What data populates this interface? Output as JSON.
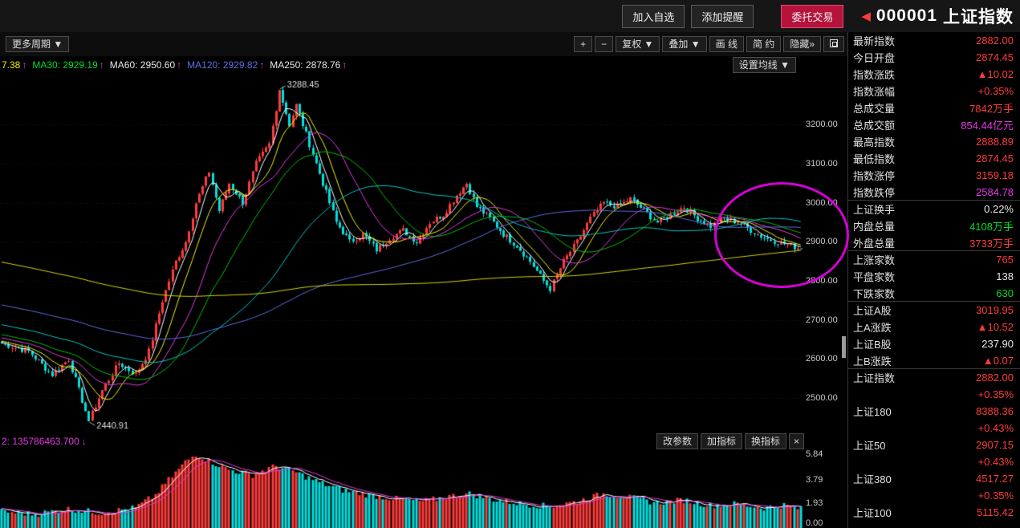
{
  "colors": {
    "red": "#ff3b3b",
    "green": "#00dc28",
    "white": "#e8e8e8",
    "magenta": "#e23ae2"
  },
  "topbar": {
    "add_watchlist": "加入自选",
    "add_alert": "添加提醒",
    "trade": "委托交易",
    "back_icon": "◀",
    "stock_code": "000001",
    "stock_name": "上证指数"
  },
  "toolbar": {
    "more_periods": "更多周期 ▼",
    "zoom_in": "+",
    "zoom_out": "−",
    "adjust": "复权 ▼",
    "overlay": "叠加 ▼",
    "draw_line": "画 线",
    "simple": "简 约",
    "hide": "隐藏»",
    "set_ma": "设置均线 ▼"
  },
  "ma_labels": {
    "partial": "7.38",
    "arrow": "↑",
    "items": [
      {
        "text": "MA30: 2929.19",
        "color": "#00dc28"
      },
      {
        "text": "MA60: 2950.60",
        "color": "#e8e8e8"
      },
      {
        "text": "MA120: 2929.82",
        "color": "#5b6ee1"
      },
      {
        "text": "MA250: 2878.76",
        "color": "#e8e8e8"
      }
    ]
  },
  "vol_pane": {
    "label": "2: 135786463.700",
    "arrow": "↓",
    "buttons": [
      "改参数",
      "加指标",
      "换指标"
    ],
    "close": "×"
  },
  "chart_data": {
    "type": "candlestick",
    "symbol": "000001 上证指数",
    "y_axis_labels": [
      "3200.00",
      "3100.00",
      "3000.00",
      "2900.00",
      "2800.00",
      "2700.00",
      "2600.00",
      "2500.00"
    ],
    "y_axis_values": [
      3200,
      3100,
      3000,
      2900,
      2800,
      2700,
      2600,
      2500
    ],
    "y_range": [
      2410,
      3330
    ],
    "num_candles": 240,
    "up_color": "#ff3b3b",
    "down_color": "#00e0e0",
    "close_anchors": [
      [
        0,
        2640
      ],
      [
        8,
        2620
      ],
      [
        15,
        2560
      ],
      [
        20,
        2600
      ],
      [
        26,
        2440.91
      ],
      [
        30,
        2520
      ],
      [
        35,
        2590
      ],
      [
        40,
        2560
      ],
      [
        44,
        2620
      ],
      [
        48,
        2750
      ],
      [
        52,
        2850
      ],
      [
        55,
        2900
      ],
      [
        58,
        3000
      ],
      [
        62,
        3080
      ],
      [
        65,
        2980
      ],
      [
        68,
        3050
      ],
      [
        72,
        3000
      ],
      [
        76,
        3100
      ],
      [
        80,
        3150
      ],
      [
        83,
        3288.45
      ],
      [
        86,
        3200
      ],
      [
        88,
        3250
      ],
      [
        92,
        3150
      ],
      [
        96,
        3050
      ],
      [
        100,
        2950
      ],
      [
        104,
        2900
      ],
      [
        108,
        2920
      ],
      [
        112,
        2880
      ],
      [
        116,
        2910
      ],
      [
        120,
        2930
      ],
      [
        124,
        2900
      ],
      [
        128,
        2950
      ],
      [
        132,
        2970
      ],
      [
        136,
        3020
      ],
      [
        139,
        3050
      ],
      [
        142,
        2990
      ],
      [
        146,
        2960
      ],
      [
        150,
        2920
      ],
      [
        154,
        2890
      ],
      [
        158,
        2850
      ],
      [
        162,
        2800
      ],
      [
        164,
        2780
      ],
      [
        168,
        2850
      ],
      [
        172,
        2900
      ],
      [
        176,
        2960
      ],
      [
        180,
        3000
      ],
      [
        184,
        2990
      ],
      [
        188,
        3010
      ],
      [
        192,
        2980
      ],
      [
        196,
        2950
      ],
      [
        200,
        2970
      ],
      [
        204,
        2990
      ],
      [
        208,
        2960
      ],
      [
        212,
        2940
      ],
      [
        216,
        2960
      ],
      [
        220,
        2950
      ],
      [
        224,
        2930
      ],
      [
        228,
        2910
      ],
      [
        232,
        2900
      ],
      [
        236,
        2890
      ],
      [
        239,
        2882
      ]
    ],
    "exact_indices": [
      26,
      83,
      239
    ],
    "ma_lines": [
      {
        "window": 5,
        "color": "#ffffff"
      },
      {
        "window": 10,
        "color": "#f0f000"
      },
      {
        "window": 20,
        "color": "#e23ae2"
      },
      {
        "window": 30,
        "color": "#00c000"
      },
      {
        "window": 60,
        "color": "#00c8c8"
      },
      {
        "window": 120,
        "color": "#5b6ee1"
      },
      {
        "window": 250,
        "color": "#d8d800"
      }
    ],
    "annotations": {
      "peak": {
        "index": 83,
        "text": "3288.45"
      },
      "low": {
        "index": 26,
        "text": "2440.91"
      },
      "ellipse": {
        "left": 890,
        "top": 227,
        "width": 168,
        "height": 132,
        "color": "#d400d4"
      }
    },
    "volume": {
      "axis_labels": [
        "5.84",
        "3.79",
        "1.93",
        "0.00"
      ],
      "axis_values": [
        5.84,
        3.79,
        1.93,
        0.0
      ],
      "range": [
        0,
        6.2
      ],
      "anchors": [
        [
          0,
          1.3
        ],
        [
          10,
          1.1
        ],
        [
          20,
          1.5
        ],
        [
          30,
          1.2
        ],
        [
          40,
          1.6
        ],
        [
          46,
          2.6
        ],
        [
          50,
          3.8
        ],
        [
          55,
          5.2
        ],
        [
          58,
          5.84
        ],
        [
          62,
          5.3
        ],
        [
          68,
          4.6
        ],
        [
          75,
          4.2
        ],
        [
          82,
          4.9
        ],
        [
          88,
          4.4
        ],
        [
          95,
          3.6
        ],
        [
          102,
          3.0
        ],
        [
          110,
          2.6
        ],
        [
          118,
          2.3
        ],
        [
          126,
          2.1
        ],
        [
          134,
          2.5
        ],
        [
          140,
          2.7
        ],
        [
          148,
          2.2
        ],
        [
          156,
          1.9
        ],
        [
          164,
          1.7
        ],
        [
          172,
          2.1
        ],
        [
          180,
          2.7
        ],
        [
          188,
          2.4
        ],
        [
          196,
          2.0
        ],
        [
          204,
          2.2
        ],
        [
          212,
          1.8
        ],
        [
          220,
          1.9
        ],
        [
          228,
          1.6
        ],
        [
          234,
          1.8
        ],
        [
          239,
          1.5
        ]
      ],
      "ma_lines": [
        {
          "window": 5,
          "color": "#ffffff"
        },
        {
          "window": 10,
          "color": "#e23ae2"
        }
      ]
    }
  },
  "sidebar": {
    "rows": [
      {
        "label": "最新指数",
        "value": "2882.00",
        "color": "red"
      },
      {
        "label": "今日开盘",
        "value": "2874.45",
        "color": "red"
      },
      {
        "label": "指数涨跌",
        "value": "▲10.02",
        "color": "red"
      },
      {
        "label": "指数涨幅",
        "value": "+0.35%",
        "color": "red"
      },
      {
        "label": "总成交量",
        "value": "7842万手",
        "color": "red"
      },
      {
        "label": "总成交额",
        "value": "854.44亿元",
        "color": "magenta"
      },
      {
        "label": "最高指数",
        "value": "2888.89",
        "color": "red"
      },
      {
        "label": "最低指数",
        "value": "2874.45",
        "color": "red"
      },
      {
        "label": "指数涨停",
        "value": "3159.18",
        "color": "red"
      },
      {
        "label": "指数跌停",
        "value": "2584.78",
        "color": "magenta",
        "sep": true
      },
      {
        "label": "上证换手",
        "value": "0.22%",
        "color": "white"
      },
      {
        "label": "内盘总量",
        "value": "4108万手",
        "color": "green"
      },
      {
        "label": "外盘总量",
        "value": "3733万手",
        "color": "red",
        "sep": true
      },
      {
        "label": "上涨家数",
        "value": "765",
        "color": "red"
      },
      {
        "label": "平盘家数",
        "value": "138",
        "color": "white"
      },
      {
        "label": "下跌家数",
        "value": "630",
        "color": "green",
        "sep": true
      },
      {
        "label": "上证A股",
        "value": "3019.95",
        "color": "red"
      },
      {
        "label": "上A涨跌",
        "value": "▲10.52",
        "color": "red"
      },
      {
        "label": "上证B股",
        "value": "237.90",
        "color": "white"
      },
      {
        "label": "上B涨跌",
        "value": "▲0.07",
        "color": "red",
        "sep": true
      },
      {
        "label": "上证指数",
        "value": "2882.00",
        "color": "red",
        "link": true
      },
      {
        "label": "",
        "value": "+0.35%",
        "color": "red",
        "link": true
      },
      {
        "label": "上证180",
        "value": "8388.36",
        "color": "red",
        "link": true
      },
      {
        "label": "",
        "value": "+0.43%",
        "color": "red",
        "link": true
      },
      {
        "label": "上证50",
        "value": "2907.15",
        "color": "red",
        "link": true
      },
      {
        "label": "",
        "value": "+0.43%",
        "color": "red",
        "link": true
      },
      {
        "label": "上证380",
        "value": "4517.27",
        "color": "red",
        "link": true
      },
      {
        "label": "",
        "value": "+0.35%",
        "color": "red",
        "link": true
      },
      {
        "label": "上证100",
        "value": "5115.42",
        "color": "red",
        "link": true
      }
    ]
  }
}
